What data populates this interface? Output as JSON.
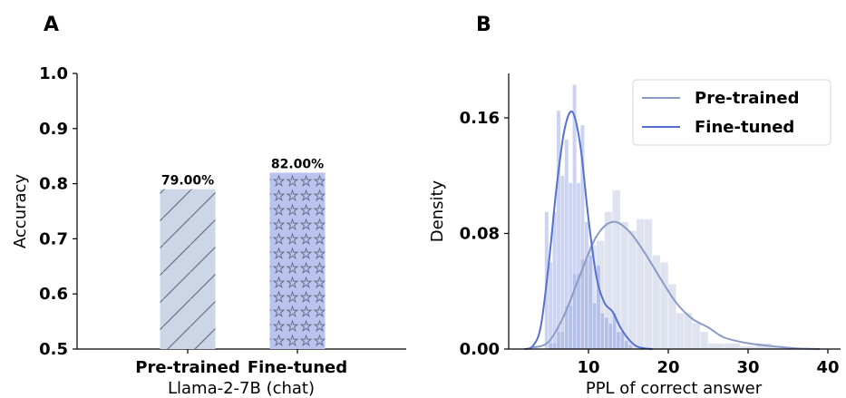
{
  "chart_data": [
    {
      "panel": "A",
      "type": "bar",
      "categories": [
        "Pre-trained",
        "Fine-tuned"
      ],
      "values": [
        0.79,
        0.82
      ],
      "data_labels": [
        "79.00%",
        "82.00%"
      ],
      "xlabel": "Llama-2-7B (chat)",
      "ylabel": "Accuracy",
      "ylim": [
        0.5,
        1.0
      ],
      "yticks": [
        "0.5",
        "0.6",
        "0.7",
        "0.8",
        "0.9",
        "1.0"
      ],
      "colors": [
        "#cdd6e6",
        "#b9c3ee"
      ],
      "patterns": [
        "diagonal-hatch",
        "stars"
      ]
    },
    {
      "panel": "B",
      "type": "histogram",
      "xlabel": "PPL of correct answer",
      "ylabel": "Density",
      "xlim": [
        1,
        41
      ],
      "ylim": [
        0,
        0.16
      ],
      "xticks": [
        "10",
        "20",
        "30",
        "40"
      ],
      "yticks": [
        "0.00",
        "0.08",
        "0.16"
      ],
      "legend_position": "top-right",
      "series": [
        {
          "name": "Pre-trained",
          "color": "#8a9cc6",
          "bins_x": [
            5.0,
            6.0,
            7.0,
            8.0,
            9.0,
            10.0,
            11.0,
            12.0,
            13.0,
            14.0,
            15.0,
            16.0,
            17.0,
            18.0,
            19.0,
            20.0,
            21.0,
            22.0,
            23.0,
            24.0,
            25.0,
            27.0,
            29.0,
            31.0,
            33.0,
            35.0
          ],
          "bins_density": [
            0.004,
            0.012,
            0.03,
            0.052,
            0.062,
            0.072,
            0.075,
            0.095,
            0.11,
            0.088,
            0.082,
            0.09,
            0.09,
            0.065,
            0.06,
            0.045,
            0.025,
            0.025,
            0.018,
            0.012,
            0.004,
            0.004,
            0.002,
            0.004,
            0.002,
            0.0
          ],
          "kde_x": [
            3,
            5,
            7,
            9,
            11,
            13,
            15,
            17,
            19,
            21,
            23,
            25,
            27,
            30,
            33,
            36,
            39
          ],
          "kde_y": [
            0.001,
            0.005,
            0.024,
            0.052,
            0.078,
            0.088,
            0.082,
            0.067,
            0.049,
            0.032,
            0.021,
            0.015,
            0.008,
            0.004,
            0.002,
            0.0005,
            0.0
          ]
        },
        {
          "name": "Fine-tuned",
          "color": "#5570d4",
          "bins_x": [
            4.5,
            5.0,
            5.5,
            6.0,
            6.5,
            7.0,
            7.5,
            8.0,
            8.5,
            9.0,
            9.5,
            10.0,
            10.5,
            11.0,
            11.5,
            12.0,
            12.5,
            13.0,
            13.5,
            14.0,
            14.5,
            15.0
          ],
          "bins_density": [
            0.095,
            0.06,
            0.095,
            0.165,
            0.12,
            0.145,
            0.115,
            0.185,
            0.115,
            0.155,
            0.088,
            0.065,
            0.032,
            0.058,
            0.025,
            0.022,
            0.018,
            0.025,
            0.012,
            0.012,
            0.006,
            0.003
          ],
          "kde_x": [
            2,
            3,
            4,
            5,
            6,
            7,
            8,
            9,
            10,
            11,
            12,
            13,
            14,
            15,
            16,
            17,
            18
          ],
          "kde_y": [
            0.0,
            0.002,
            0.015,
            0.058,
            0.112,
            0.152,
            0.164,
            0.14,
            0.09,
            0.05,
            0.032,
            0.026,
            0.015,
            0.007,
            0.002,
            0.0005,
            0.0
          ]
        }
      ]
    }
  ]
}
